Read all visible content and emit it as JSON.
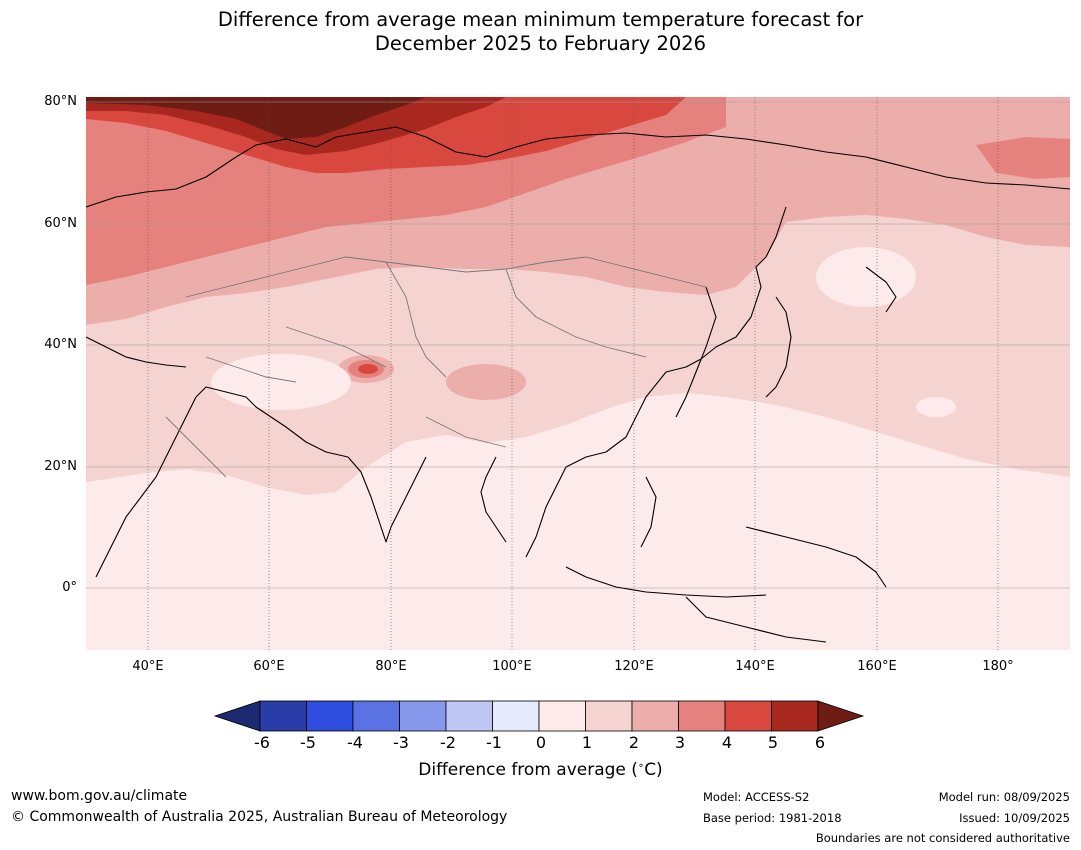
{
  "title_line1": "Difference from average mean minimum temperature forecast for",
  "title_line2": "December 2025 to February 2026",
  "lat_labels": [
    "80°N",
    "60°N",
    "40°N",
    "20°N",
    "0°"
  ],
  "lon_labels": [
    "40°E",
    "60°E",
    "80°E",
    "100°E",
    "120°E",
    "140°E",
    "160°E",
    "180°"
  ],
  "colorbar": {
    "ticks": [
      "-6",
      "-5",
      "-4",
      "-3",
      "-2",
      "-1",
      "0",
      "1",
      "2",
      "3",
      "4",
      "5",
      "6"
    ],
    "colors": [
      "#2a3ca8",
      "#2f4ddf",
      "#5b72e4",
      "#8699ec",
      "#bfc8f5",
      "#e6eafb",
      "#fcebea",
      "#f5d3d1",
      "#ecaeaa",
      "#e5827d",
      "#d8483f",
      "#a8281f"
    ],
    "extend_low_color": "#1d2a72",
    "extend_high_color": "#6e1c14",
    "label": "Difference from average ($^\\circ$C)",
    "label_text": "Difference from average (",
    "label_unit": "C)"
  },
  "footer": {
    "url": "www.bom.gov.au/climate",
    "copyright": "© Commonwealth of Australia 2025, Australian Bureau of Meteorology",
    "model": "Model: ACCESS-S2",
    "base_period": "Base period: 1981-2018",
    "model_run": "Model run: 08/09/2025",
    "issued": "Issued: 10/09/2025",
    "disclaimer": "Boundaries are not considered authoritative"
  }
}
